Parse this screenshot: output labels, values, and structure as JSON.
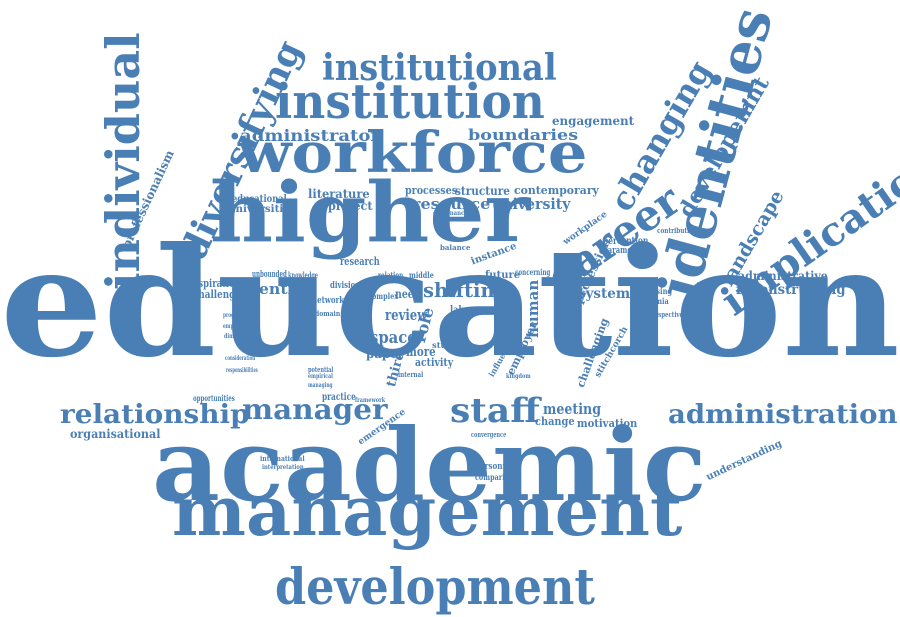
{
  "accent": "#4a7fb5",
  "words": [
    {
      "id": "education",
      "text": "education"
    },
    {
      "id": "academic",
      "text": "academic"
    },
    {
      "id": "management",
      "text": "management"
    },
    {
      "id": "higher",
      "text": "higher"
    },
    {
      "id": "workforce",
      "text": "workforce"
    },
    {
      "id": "institution",
      "text": "institution"
    },
    {
      "id": "institutional",
      "text": "institutional"
    },
    {
      "id": "individual",
      "text": "individual"
    },
    {
      "id": "diversifying",
      "text": "diversifying"
    },
    {
      "id": "identities",
      "text": "identities"
    },
    {
      "id": "implication",
      "text": "implication"
    },
    {
      "id": "career",
      "text": "career"
    },
    {
      "id": "changing",
      "text": "changing"
    },
    {
      "id": "development",
      "text": "development"
    },
    {
      "id": "developemnt",
      "text": "developemnt"
    },
    {
      "id": "landscape",
      "text": "landscape"
    },
    {
      "id": "relationship",
      "text": "relationship"
    },
    {
      "id": "manager",
      "text": "manager"
    },
    {
      "id": "staff",
      "text": "staff"
    },
    {
      "id": "administration",
      "text": "administration"
    },
    {
      "id": "administrator",
      "text": "administrator"
    },
    {
      "id": "boundaries",
      "text": "boundaries"
    },
    {
      "id": "engagement",
      "text": "engagement"
    },
    {
      "id": "professionalism",
      "text": "professionalism"
    },
    {
      "id": "literature",
      "text": "literature"
    },
    {
      "id": "educational",
      "text": "educational"
    },
    {
      "id": "universities",
      "text": "universities"
    },
    {
      "id": "project",
      "text": "project"
    },
    {
      "id": "processes",
      "text": "processes"
    },
    {
      "id": "structure",
      "text": "structure"
    },
    {
      "id": "contemporary",
      "text": "contemporary"
    },
    {
      "id": "resource",
      "text": "resource"
    },
    {
      "id": "university",
      "text": "university"
    },
    {
      "id": "governance",
      "text": "governance"
    },
    {
      "id": "perception",
      "text": "perception"
    },
    {
      "id": "parameter",
      "text": "parameter"
    },
    {
      "id": "workplace",
      "text": "workplace"
    },
    {
      "id": "contribution",
      "text": "contribution"
    },
    {
      "id": "research",
      "text": "research"
    },
    {
      "id": "instance",
      "text": "instance"
    },
    {
      "id": "balance",
      "text": "balance"
    },
    {
      "id": "profession",
      "text": "profession"
    },
    {
      "id": "administrative",
      "text": "administrative"
    },
    {
      "id": "reconstructing",
      "text": "reconstructing"
    },
    {
      "id": "aspiration",
      "text": "aspiration"
    },
    {
      "id": "challenge",
      "text": "challenge"
    },
    {
      "id": "unbounded",
      "text": "unbounded"
    },
    {
      "id": "knowledge",
      "text": "knowledge"
    },
    {
      "id": "identity",
      "text": "identity"
    },
    {
      "id": "division",
      "text": "division"
    },
    {
      "id": "relation",
      "text": "relation"
    },
    {
      "id": "middle",
      "text": "middle"
    },
    {
      "id": "future",
      "text": "future"
    },
    {
      "id": "concerning",
      "text": "concerning"
    },
    {
      "id": "complex",
      "text": "complex"
    },
    {
      "id": "need",
      "text": "need"
    },
    {
      "id": "shifting",
      "text": "shifting"
    },
    {
      "id": "system",
      "text": "system"
    },
    {
      "id": "optimising",
      "text": "optimising"
    },
    {
      "id": "academia",
      "text": "academia"
    },
    {
      "id": "perspective",
      "text": "perspective"
    },
    {
      "id": "network",
      "text": "network"
    },
    {
      "id": "domain",
      "text": "domain"
    },
    {
      "id": "space",
      "text": "space"
    },
    {
      "id": "review",
      "text": "review"
    },
    {
      "id": "role",
      "text": "role"
    },
    {
      "id": "labour",
      "text": "labour"
    },
    {
      "id": "human",
      "text": "human"
    },
    {
      "id": "employer",
      "text": "employer"
    },
    {
      "id": "challenging",
      "text": "challenging"
    },
    {
      "id": "stitchcorch",
      "text": "stitchcorch"
    },
    {
      "id": "paper",
      "text": "paper"
    },
    {
      "id": "more",
      "text": "more"
    },
    {
      "id": "study",
      "text": "study"
    },
    {
      "id": "activity",
      "text": "activity"
    },
    {
      "id": "third",
      "text": "third"
    },
    {
      "id": "influence",
      "text": "influence"
    },
    {
      "id": "kingdom",
      "text": "kingdom"
    },
    {
      "id": "internal",
      "text": "internal"
    },
    {
      "id": "programme",
      "text": "programme"
    },
    {
      "id": "employment",
      "text": "employment"
    },
    {
      "id": "dimension",
      "text": "dimension"
    },
    {
      "id": "consideration",
      "text": "consideration"
    },
    {
      "id": "responsibilities",
      "text": "responsibilities"
    },
    {
      "id": "potential",
      "text": "potential"
    },
    {
      "id": "empirical",
      "text": "empirical"
    },
    {
      "id": "managing",
      "text": "managing"
    },
    {
      "id": "practice",
      "text": "practice"
    },
    {
      "id": "opportunities",
      "text": "opportunities"
    },
    {
      "id": "organisational",
      "text": "organisational"
    },
    {
      "id": "emergence",
      "text": "emergence"
    },
    {
      "id": "framework",
      "text": "framework"
    },
    {
      "id": "meeting",
      "text": "meeting"
    },
    {
      "id": "change",
      "text": "change"
    },
    {
      "id": "motivation",
      "text": "motivation"
    },
    {
      "id": "convergence",
      "text": "convergence"
    },
    {
      "id": "international",
      "text": "international"
    },
    {
      "id": "interpretation",
      "text": "interpretation"
    },
    {
      "id": "personnel",
      "text": "personnel"
    },
    {
      "id": "comparison",
      "text": "comparison"
    },
    {
      "id": "understanding",
      "text": "understanding"
    }
  ]
}
